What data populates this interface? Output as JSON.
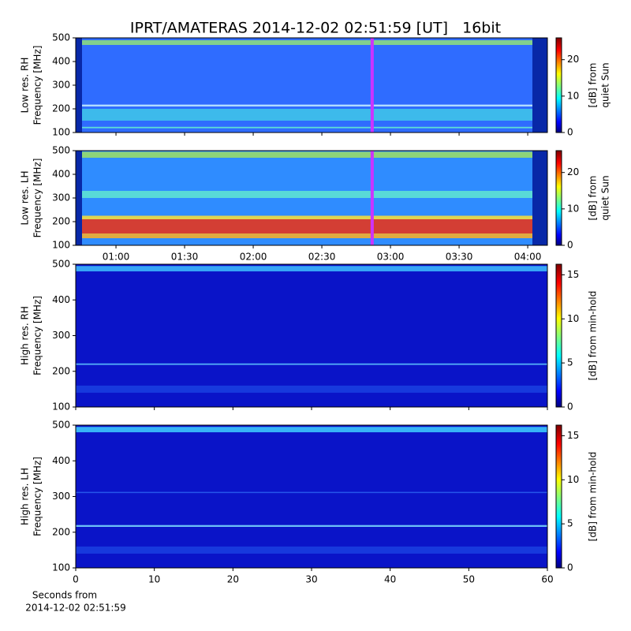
{
  "chart_data": [
    {
      "type": "heatmap",
      "title": "IPRT/AMATERAS 2014-12-02 02:51:59 [UT]   16bit",
      "ylabel": [
        "Low res. RH",
        "Frequency [MHz]"
      ],
      "ylim": [
        100,
        500
      ],
      "yticks": [
        100,
        200,
        300,
        400,
        500
      ],
      "xlim": [
        42.4,
        248.6
      ],
      "background": "#2f6cff",
      "marker_x": 172,
      "marker_color": "#cc33ff",
      "bands": [
        {
          "range": [
            470,
            490
          ],
          "color": "#8fe07a"
        },
        {
          "range": [
            210,
            218
          ],
          "color": "#c8f0ff"
        },
        {
          "range": [
            150,
            200
          ],
          "color": "#3fc8e8"
        },
        {
          "range": [
            118,
            124
          ],
          "color": "#66f0d0"
        }
      ],
      "colorbar": {
        "label": [
          "[dB] from",
          "quiet Sun"
        ],
        "lim": [
          0,
          26
        ],
        "ticks": [
          0,
          10,
          20
        ],
        "colormap": "jet"
      }
    },
    {
      "type": "heatmap",
      "ylabel": [
        "Low res. LH",
        "Frequency [MHz]"
      ],
      "ylim": [
        100,
        500
      ],
      "yticks": [
        100,
        200,
        300,
        400,
        500
      ],
      "xlim": [
        42.4,
        248.6
      ],
      "xticks": [
        {
          "value": 60,
          "label": "01:00"
        },
        {
          "value": 90,
          "label": "01:30"
        },
        {
          "value": 120,
          "label": "02:00"
        },
        {
          "value": 150,
          "label": "02:30"
        },
        {
          "value": 180,
          "label": "03:00"
        },
        {
          "value": 210,
          "label": "03:30"
        },
        {
          "value": 240,
          "label": "04:00"
        }
      ],
      "background": "#2f8cff",
      "marker_x": 172,
      "marker_color": "#cc33ff",
      "bands": [
        {
          "range": [
            470,
            495
          ],
          "color": "#9fe060"
        },
        {
          "range": [
            300,
            330
          ],
          "color": "#60e8d0"
        },
        {
          "range": [
            210,
            225
          ],
          "color": "#ffe030"
        },
        {
          "range": [
            150,
            210
          ],
          "color": "#f03010"
        },
        {
          "range": [
            130,
            150
          ],
          "color": "#ffb020"
        }
      ],
      "colorbar": {
        "label": [
          "[dB] from",
          "quiet Sun"
        ],
        "lim": [
          0,
          26
        ],
        "ticks": [
          0,
          10,
          20
        ],
        "colormap": "jet"
      }
    },
    {
      "type": "heatmap",
      "ylabel": [
        "High res. RH",
        "Frequency [MHz]"
      ],
      "ylim": [
        100,
        500
      ],
      "yticks": [
        100,
        200,
        300,
        400,
        500
      ],
      "xlim": [
        0,
        60
      ],
      "background": "#0a14c8",
      "bands": [
        {
          "range": [
            480,
            495
          ],
          "color": "#40c0ff"
        },
        {
          "range": [
            218,
            222
          ],
          "color": "#60c8ff"
        },
        {
          "range": [
            140,
            160
          ],
          "color": "#1a40e0"
        }
      ],
      "colorbar": {
        "label": [
          "[dB] from min-hold"
        ],
        "lim": [
          0,
          16.2
        ],
        "ticks": [
          0,
          5,
          10,
          15
        ],
        "colormap": "jet"
      }
    },
    {
      "type": "heatmap",
      "ylabel": [
        "High res. LH",
        "Frequency [MHz]"
      ],
      "ylim": [
        100,
        500
      ],
      "yticks": [
        100,
        200,
        300,
        400,
        500
      ],
      "xlim": [
        0,
        60
      ],
      "xticks": [
        0,
        10,
        20,
        30,
        40,
        50,
        60
      ],
      "xlabel": [
        "Seconds from",
        "2014-12-02 02:51:59"
      ],
      "background": "#0a14c8",
      "bands": [
        {
          "range": [
            480,
            495
          ],
          "color": "#40d0ff"
        },
        {
          "range": [
            215,
            220
          ],
          "color": "#80e0ff"
        },
        {
          "range": [
            310,
            313
          ],
          "color": "#2a60f0"
        },
        {
          "range": [
            140,
            160
          ],
          "color": "#1a40e0"
        }
      ],
      "colorbar": {
        "label": [
          "[dB] from min-hold"
        ],
        "lim": [
          0,
          16.2
        ],
        "ticks": [
          0,
          5,
          10,
          15
        ],
        "colormap": "jet"
      }
    }
  ]
}
